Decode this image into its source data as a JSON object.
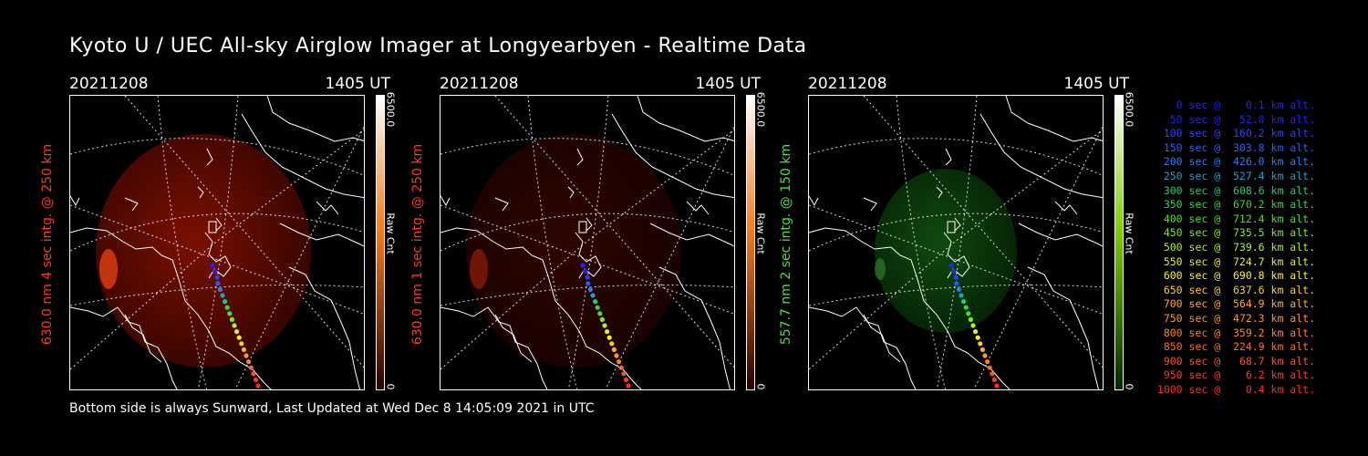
{
  "page": {
    "title": "Kyoto U / UEC All-sky Airglow Imager at Longyearbyen - Realtime Data",
    "footer": "Bottom side is always Sunward, Last Updated at Wed Dec  8 14:05:09 2021 in UTC"
  },
  "panels": [
    {
      "date": "20211208",
      "time": "1405 UT",
      "ylabel": "630.0 nm 4 sec intg. @ 250 km",
      "ylabel_color": "#ff3a1a",
      "cbar_max": "6500.0",
      "cbar_unit": "Raw Cnt",
      "cbar_min": "0",
      "theme": "red",
      "colors": {
        "dark": "#3a0500",
        "mid": "#7a1000",
        "bright": "#d23a10",
        "cbar_top": "#ffffff",
        "cbar_mid": "#ff7a1a",
        "cbar_bot": "#2a0000"
      }
    },
    {
      "date": "20211208",
      "time": "1405 UT",
      "ylabel": "630.0 nm 1 sec intg. @ 250 km",
      "ylabel_color": "#ff3a1a",
      "cbar_max": "6500.0",
      "cbar_unit": "Raw Cnt",
      "cbar_min": "0",
      "theme": "red-dim",
      "colors": {
        "dark": "#1a0200",
        "mid": "#2e0500",
        "bright": "#7a1808",
        "cbar_top": "#ffffff",
        "cbar_mid": "#ff7a1a",
        "cbar_bot": "#2a0000"
      }
    },
    {
      "date": "20211208",
      "time": "1405 UT",
      "ylabel": "557.7 nm 2 sec intg. @ 150 km",
      "ylabel_color": "#49e03a",
      "cbar_max": "6500.0",
      "cbar_unit": "Raw Cnt",
      "cbar_min": "0",
      "theme": "green",
      "colors": {
        "dark": "#062406",
        "mid": "#0f4a0f",
        "bright": "#2f7a2f",
        "cbar_top": "#ffffff",
        "cbar_mid": "#7fd000",
        "cbar_bot": "#002800"
      }
    }
  ],
  "trajectory_legend": [
    {
      "text": "   0 sec @    0.1 km alt.",
      "color": "#2020ff"
    },
    {
      "text": "  50 sec @   52.0 km alt.",
      "color": "#2020ff"
    },
    {
      "text": " 100 sec @  160.2 km alt.",
      "color": "#2a40ff"
    },
    {
      "text": " 150 sec @  303.8 km alt.",
      "color": "#2a5cff"
    },
    {
      "text": " 200 sec @  426.0 km alt.",
      "color": "#2a7cff"
    },
    {
      "text": " 250 sec @  527.4 km alt.",
      "color": "#20a0c8"
    },
    {
      "text": " 300 sec @  608.6 km alt.",
      "color": "#20c880"
    },
    {
      "text": " 350 sec @  670.2 km alt.",
      "color": "#30d840"
    },
    {
      "text": " 400 sec @  712.4 km alt.",
      "color": "#50e020"
    },
    {
      "text": " 450 sec @  735.5 km alt.",
      "color": "#80e820"
    },
    {
      "text": " 500 sec @  739.6 km alt.",
      "color": "#b0f020"
    },
    {
      "text": " 550 sec @  724.7 km alt.",
      "color": "#e0f020"
    },
    {
      "text": " 600 sec @  690.8 km alt.",
      "color": "#fff020"
    },
    {
      "text": " 650 sec @  637.6 km alt.",
      "color": "#ffd020"
    },
    {
      "text": " 700 sec @  564.9 km alt.",
      "color": "#ffb020"
    },
    {
      "text": " 750 sec @  472.3 km alt.",
      "color": "#ff9820"
    },
    {
      "text": " 800 sec @  359.2 km alt.",
      "color": "#ff8020"
    },
    {
      "text": " 850 sec @  224.9 km alt.",
      "color": "#ff6a20"
    },
    {
      "text": " 900 sec @   68.7 km alt.",
      "color": "#ff5020"
    },
    {
      "text": " 950 sec @    6.2 km alt.",
      "color": "#ff3820"
    },
    {
      "text": "1000 sec @    0.4 km alt.",
      "color": "#ff2a20"
    }
  ]
}
